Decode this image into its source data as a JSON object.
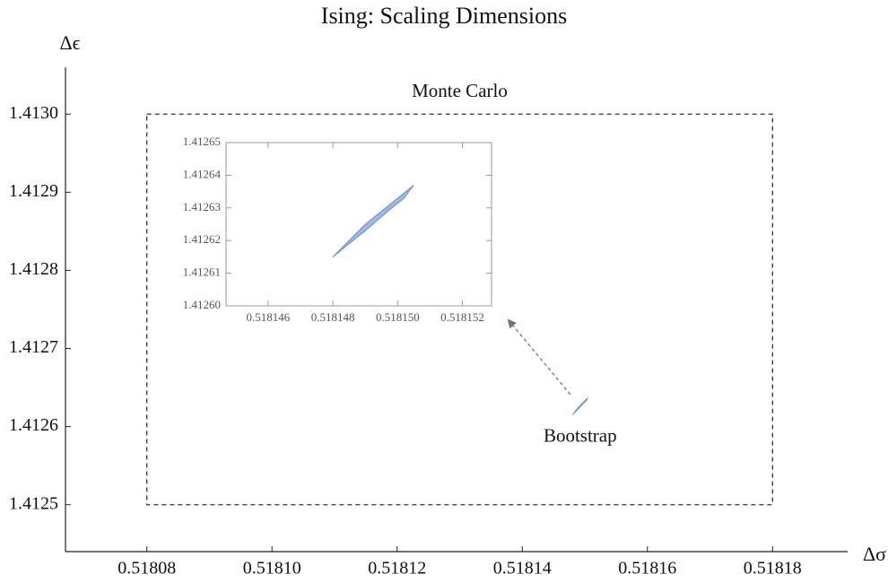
{
  "chart_data": [
    {
      "type": "region",
      "title": "Ising: Scaling Dimensions",
      "xlabel": "Δσ",
      "ylabel": "Δϵ",
      "xlim": [
        0.518067,
        0.518192
      ],
      "ylim": [
        1.41244,
        1.41306
      ],
      "xticks": [
        0.51808,
        0.5181,
        0.51812,
        0.51814,
        0.51816,
        0.51818
      ],
      "xtick_labels": [
        "0.51808",
        "0.51810",
        "0.51812",
        "0.51814",
        "0.51816",
        "0.51818"
      ],
      "yticks": [
        1.4125,
        1.4126,
        1.4127,
        1.4128,
        1.4129,
        {
          "value": 1.413,
          "label": "1.4130"
        }
      ],
      "series": [
        {
          "name": "Monte Carlo",
          "shape": "rectangle",
          "dashed": true,
          "color": "#333333",
          "x": [
            0.51808,
            0.51818
          ],
          "y": [
            1.4125,
            1.413
          ]
        },
        {
          "name": "Bootstrap",
          "shape": "polygon",
          "color": "#9bb8e8",
          "x": [
            0.518148,
            0.5181485,
            0.518149,
            0.5181495,
            0.51815,
            0.5181505,
            0.5181502,
            0.5181497,
            0.518149,
            0.5181485
          ],
          "y": [
            1.412615,
            1.41262,
            1.412625,
            1.412629,
            1.412633,
            1.412637,
            1.412633,
            1.412629,
            1.412623,
            1.412619
          ]
        }
      ]
    },
    {
      "type": "region",
      "xlim": [
        0.5181447,
        0.5181529
      ],
      "ylim": [
        1.4126,
        1.41265
      ],
      "xticks": [
        0.518146,
        0.518148,
        {
          "value": 0.51815,
          "label": "0.518150"
        },
        0.518152
      ],
      "yticks": [
        {
          "value": 1.4126,
          "label": "1.41260"
        },
        1.41261,
        1.41262,
        1.41263,
        1.41264,
        1.41265
      ],
      "series": [
        {
          "shape": "polygon",
          "color": "#9bb8e8",
          "x": [
            0.518148,
            0.5181485,
            0.518149,
            0.5181495,
            0.51815,
            0.5181505,
            0.5181502,
            0.5181497,
            0.518149,
            0.5181485
          ],
          "y": [
            1.412615,
            1.41262,
            1.412625,
            1.412629,
            1.412633,
            1.412637,
            1.412633,
            1.412629,
            1.412623,
            1.412619
          ]
        }
      ]
    }
  ]
}
